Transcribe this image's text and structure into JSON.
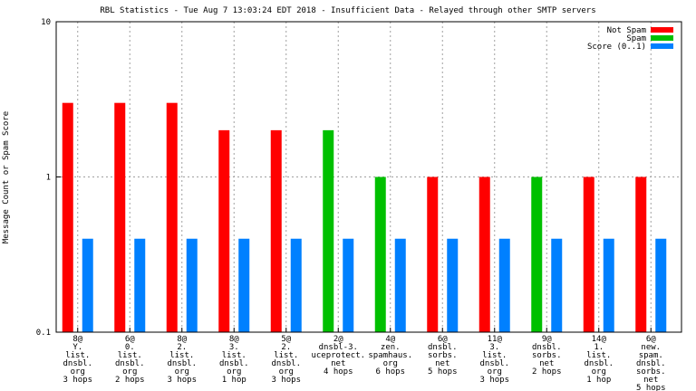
{
  "chart_data": {
    "type": "bar",
    "title": "RBL Statistics - Tue Aug  7 13:03:24 EDT 2018 - Insufficient Data - Relayed through other SMTP servers",
    "ylabel": "Message Count or Spam Score",
    "xlabel": "",
    "yscale": "log",
    "ylim": [
      0.1,
      10
    ],
    "yticks": [
      "0.1",
      "1",
      "10"
    ],
    "grid": true,
    "legend_position": "top-right",
    "categories": [
      [
        "8@",
        "Y.",
        "list.",
        "dnsbl.",
        "org",
        "3 hops"
      ],
      [
        "6@",
        "0.",
        "list.",
        "dnsbl.",
        "org",
        "2 hops"
      ],
      [
        "8@",
        "2.",
        "list.",
        "dnsbl.",
        "org",
        "3 hops"
      ],
      [
        "8@",
        "3.",
        "list.",
        "dnsbl.",
        "org",
        "1 hop"
      ],
      [
        "5@",
        "2.",
        "list.",
        "dnsbl.",
        "org",
        "3 hops"
      ],
      [
        "2@",
        "dnsbl-3.",
        "uceprotect.",
        "net",
        "4 hops"
      ],
      [
        "4@",
        "zen.",
        "spamhaus.",
        "org",
        "6 hops"
      ],
      [
        "6@",
        "dnsbl.",
        "sorbs.",
        "net",
        "5 hops"
      ],
      [
        "11@",
        "3.",
        "list.",
        "dnsbl.",
        "org",
        "3 hops"
      ],
      [
        "9@",
        "dnsbl.",
        "sorbs.",
        "net",
        "2 hops"
      ],
      [
        "14@",
        "1.",
        "list.",
        "dnsbl.",
        "org",
        "1 hop"
      ],
      [
        "6@",
        "new.",
        "spam.",
        "dnsbl.",
        "sorbs.",
        "net",
        "5 hops"
      ]
    ],
    "series": [
      {
        "name": "Not Spam",
        "color": "#ff0000",
        "values": [
          3,
          3,
          3,
          2,
          2,
          null,
          null,
          1,
          1,
          null,
          1,
          1
        ]
      },
      {
        "name": "Spam",
        "color": "#00c000",
        "values": [
          null,
          null,
          null,
          null,
          null,
          2,
          1,
          null,
          null,
          1,
          null,
          null
        ]
      },
      {
        "name": "Score (0..1)",
        "color": "#0080ff",
        "values": [
          0.4,
          0.4,
          0.4,
          0.4,
          0.4,
          0.4,
          0.4,
          0.4,
          0.4,
          0.4,
          0.4,
          0.4
        ]
      }
    ]
  }
}
